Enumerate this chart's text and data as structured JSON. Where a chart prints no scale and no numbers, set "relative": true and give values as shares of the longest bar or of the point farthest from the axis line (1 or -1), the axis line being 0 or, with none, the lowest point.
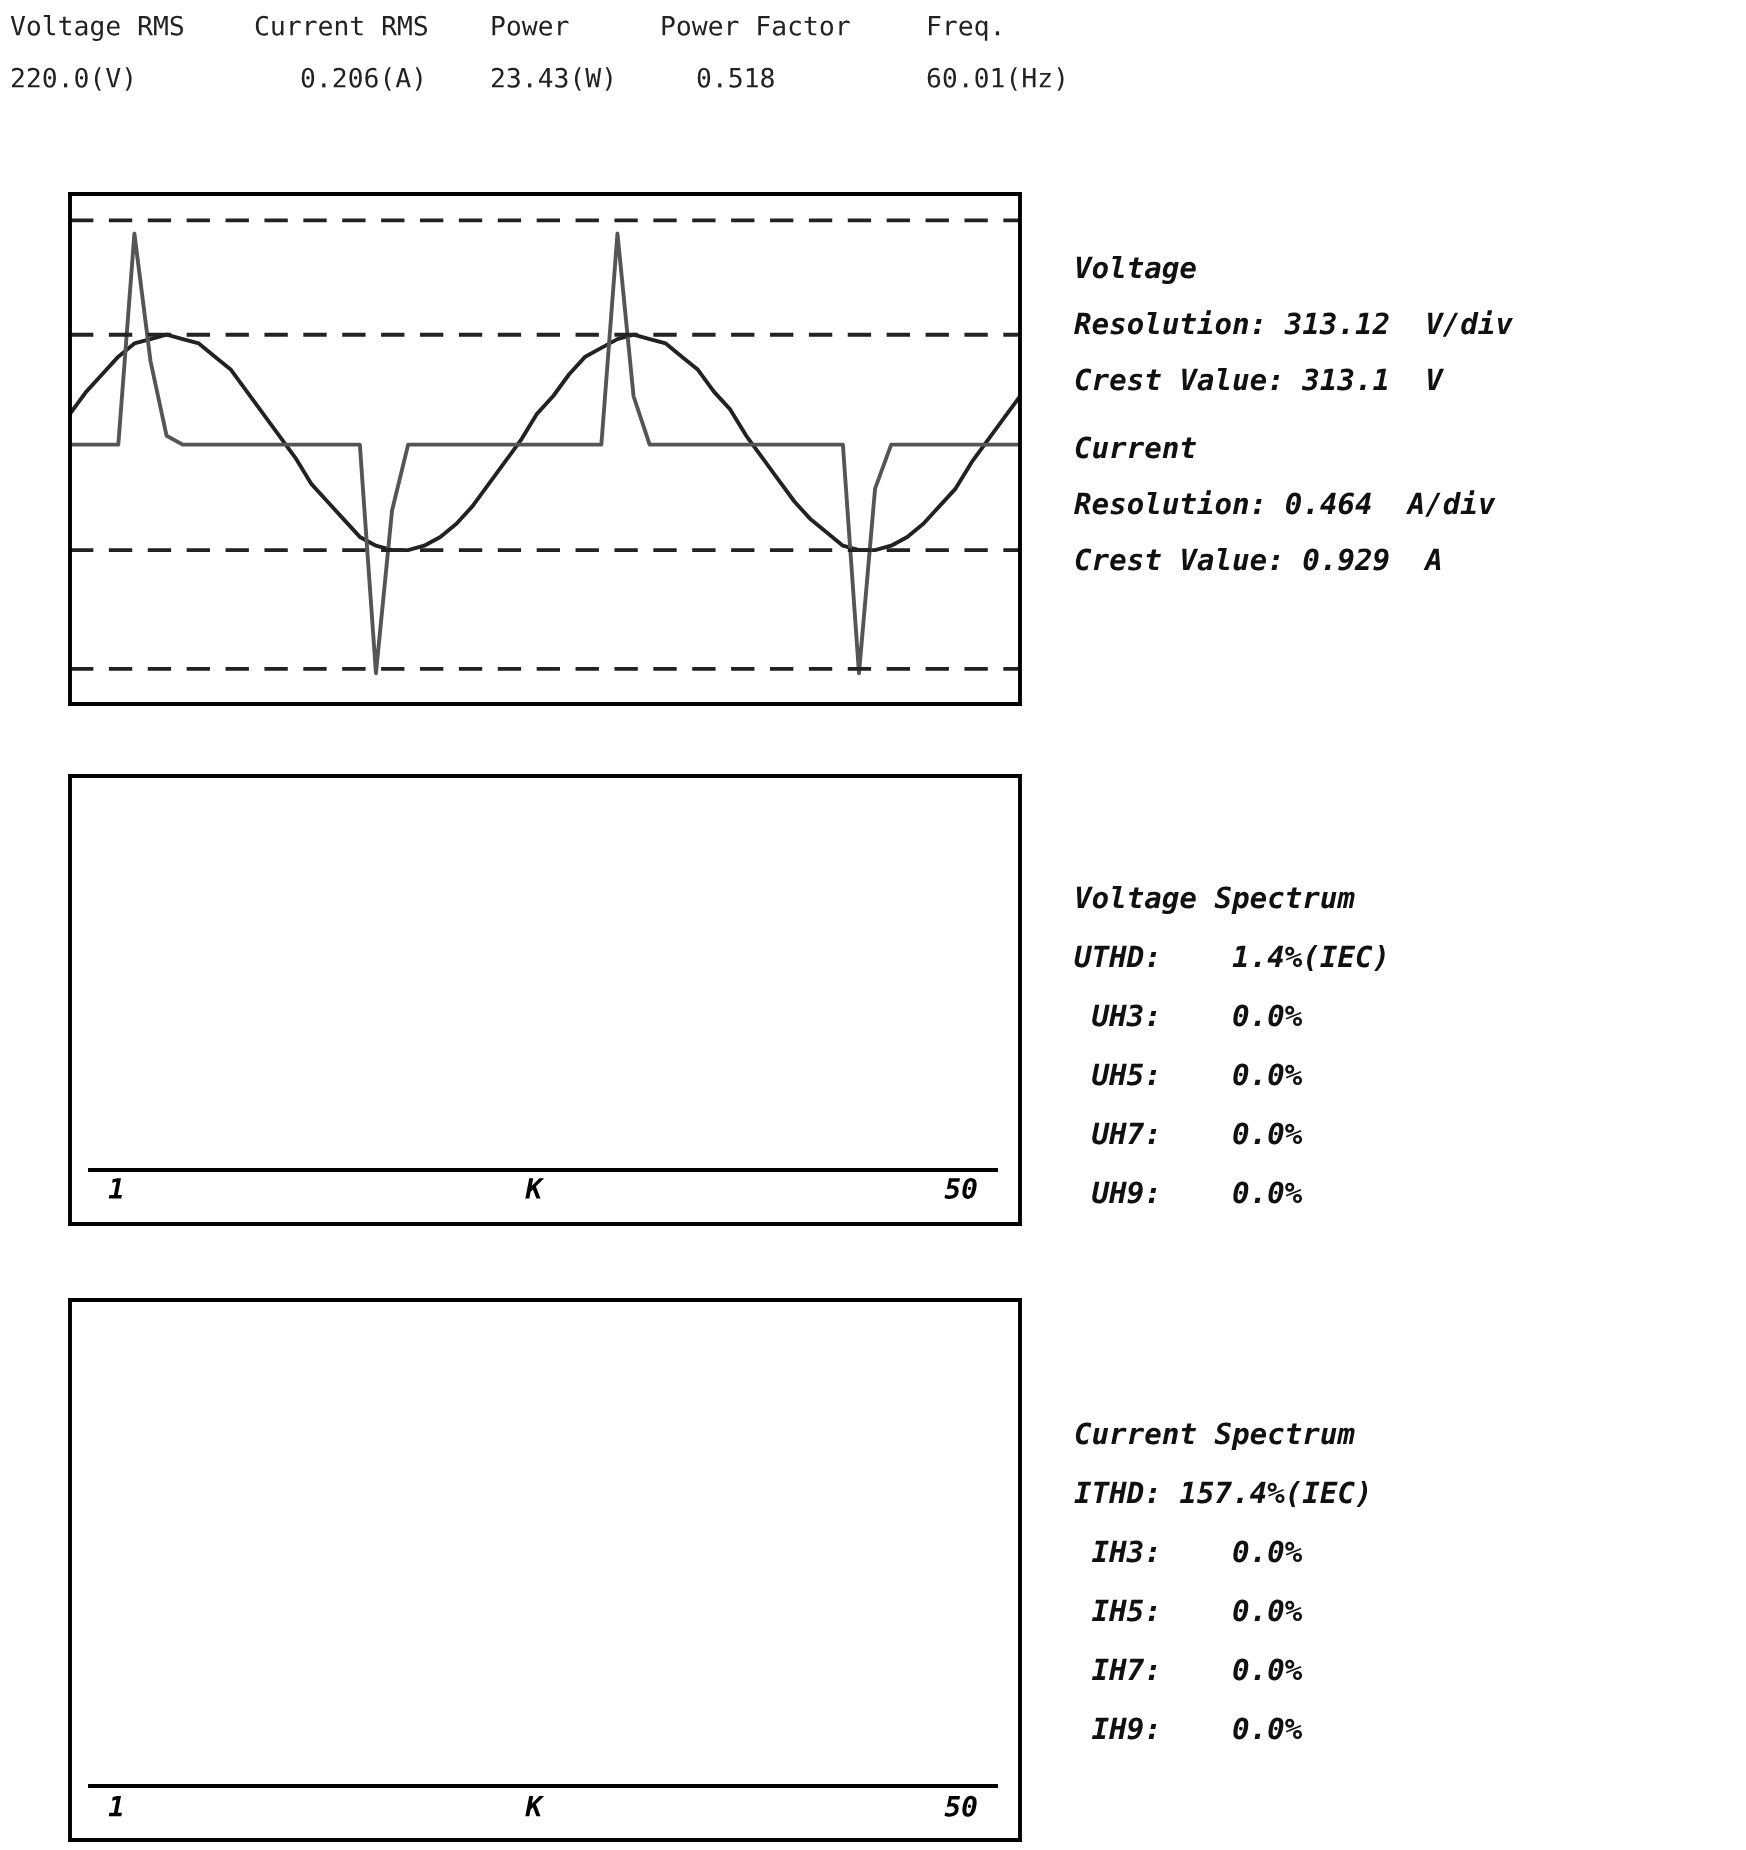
{
  "chart_data": [
    {
      "type": "other",
      "annotations": [
        "Voltage RMS",
        "Current RMS",
        "Power",
        "Power Factor",
        "Freq.",
        "220.0(V)",
        "0.206(A)",
        "23.43(W)",
        "0.518",
        "60.01(Hz)"
      ]
    },
    {
      "type": "line",
      "relative": true,
      "categories": [
        null,
        null,
        null,
        null,
        null,
        null,
        null,
        null,
        null,
        null,
        null,
        null,
        null,
        null,
        null,
        null,
        null,
        null,
        null,
        null,
        null,
        null,
        null,
        null,
        null,
        null,
        null,
        null,
        null,
        null,
        null,
        null,
        null,
        null,
        null,
        null,
        null,
        null,
        null,
        null,
        null,
        null,
        null,
        null,
        null,
        null,
        null,
        null,
        null,
        null,
        null,
        null,
        null,
        null,
        null,
        null,
        null,
        null,
        null,
        null
      ],
      "series": [
        {
          "color": "#222222",
          "values": [
            0.59,
            0.64,
            0.68,
            0.72,
            0.75,
            0.76,
            0.77,
            0.76,
            0.75,
            0.72,
            0.69,
            0.64,
            0.59,
            0.54,
            0.49,
            0.43,
            0.39,
            0.35,
            0.31,
            0.29,
            0.28,
            0.28,
            0.29,
            0.31,
            0.34,
            0.38,
            0.43,
            0.48,
            0.53,
            0.59,
            0.63,
            0.68,
            0.72,
            0.74,
            0.76,
            0.77,
            0.76,
            0.75,
            0.72,
            0.69,
            0.64,
            0.6,
            0.54,
            0.49,
            0.44,
            0.39,
            0.35,
            0.32,
            0.29,
            0.28,
            0.28,
            0.29,
            0.31,
            0.34,
            0.38,
            0.42,
            0.48,
            0.53,
            0.58,
            0.63
          ]
        },
        {
          "color": "#555555",
          "values": [
            0.52,
            0.52,
            0.52,
            0.52,
            1.0,
            0.71,
            0.54,
            0.52,
            0.52,
            0.52,
            0.52,
            0.52,
            0.52,
            0.52,
            0.52,
            0.52,
            0.52,
            0.52,
            0.52,
            0,
            0.37,
            0.52,
            0.52,
            0.52,
            0.52,
            0.52,
            0.52,
            0.52,
            0.52,
            0.52,
            0.52,
            0.52,
            0.52,
            0.52,
            1.0,
            0.63,
            0.52,
            0.52,
            0.52,
            0.52,
            0.52,
            0.52,
            0.52,
            0.52,
            0.52,
            0.52,
            0.52,
            0.52,
            0.52,
            0,
            0.42,
            0.52,
            0.52,
            0.52,
            0.52,
            0.52,
            0.52,
            0.52,
            0.52,
            0.52
          ]
        }
      ],
      "ref_lines": [
        {
          "axis": "y",
          "value": 1.03,
          "line_style": "dashed",
          "color": "#222222"
        },
        {
          "axis": "y",
          "value": 0.77,
          "line_style": "dashed",
          "color": "#222222"
        },
        {
          "axis": "y",
          "value": 0.28,
          "line_style": "dashed",
          "color": "#222222"
        },
        {
          "axis": "y",
          "value": 0.01,
          "line_style": "dashed",
          "color": "#222222"
        }
      ]
    },
    {
      "type": "other",
      "annotations": [
        "Voltage",
        "Resolution: 313.12  V/div",
        "Crest Value: 313.1  V",
        "Current",
        "Resolution: 0.464  A/div",
        "Crest Value: 0.929  A"
      ]
    },
    {
      "type": "other",
      "annotations": [
        "1",
        "K",
        "50"
      ]
    },
    {
      "type": "other",
      "annotations": [
        "Voltage Spectrum",
        "UTHD:    1.4%(IEC)",
        " UH3:    0.0%",
        " UH5:    0.0%",
        " UH7:    0.0%",
        " UH9:    0.0%"
      ]
    },
    {
      "type": "other",
      "annotations": [
        "1",
        "K",
        "50"
      ]
    },
    {
      "type": "other",
      "annotations": [
        "Current Spectrum",
        "ITHD: 157.4%(IEC)",
        " IH3:    0.0%",
        " IH5:    0.0%",
        " IH7:    0.0%",
        " IH9:    0.0%"
      ]
    }
  ]
}
